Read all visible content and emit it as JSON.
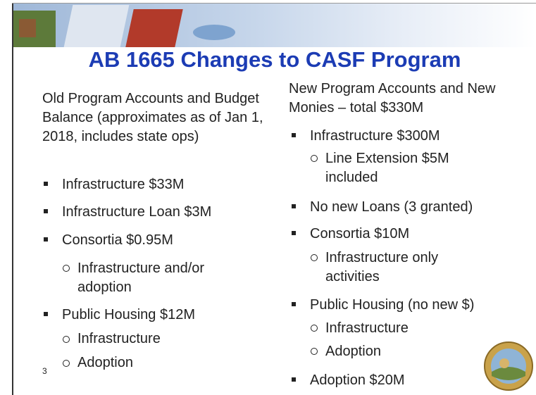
{
  "title": "AB 1665 Changes to CASF Program",
  "page_number": "3",
  "left": {
    "heading": "Old Program Accounts and Budget Balance (approximates as of Jan 1, 2018, includes state ops)",
    "items": [
      {
        "text": "Infrastructure $33M"
      },
      {
        "text": "Infrastructure Loan $3M"
      },
      {
        "text": "Consortia $0.95M",
        "sub": [
          "Infrastructure and/or adoption"
        ]
      },
      {
        "text": "Public Housing $12M",
        "sub": [
          "Infrastructure",
          "Adoption"
        ]
      }
    ]
  },
  "right": {
    "heading": "New Program Accounts and New Monies – total $330M",
    "items": [
      {
        "text": "Infrastructure $300M",
        "sub": [
          "Line Extension $5M included"
        ]
      },
      {
        "text": "No new Loans (3 granted)"
      },
      {
        "text": "Consortia $10M",
        "sub": [
          "Infrastructure only activities"
        ]
      },
      {
        "text": "Public Housing (no new $)",
        "sub": [
          "Infrastructure",
          "Adoption"
        ]
      },
      {
        "text": "Adoption $20M"
      }
    ]
  }
}
